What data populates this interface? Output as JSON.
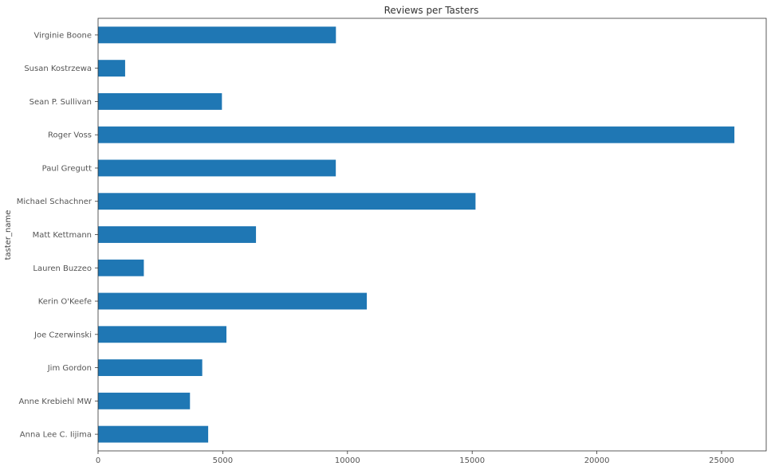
{
  "chart_data": {
    "type": "bar",
    "orientation": "horizontal",
    "title": "Reviews per Tasters",
    "xlabel": "",
    "ylabel": "taster_name",
    "categories": [
      "Virginie Boone",
      "Susan Kostrzewa",
      "Sean P. Sullivan",
      "Roger Voss",
      "Paul Gregutt",
      "Michael Schachner",
      "Matt Kettmann",
      "Lauren Buzzeo",
      "Kerin O'Keefe",
      "Joe Czerwinski",
      "Jim Gordon",
      "Anne Krebiehl MW",
      "Anna Lee C. Iijima"
    ],
    "values": [
      9537,
      1085,
      4966,
      25514,
      9532,
      15134,
      6332,
      1835,
      10776,
      5147,
      4177,
      3685,
      4415
    ],
    "xlim": [
      0,
      26790
    ],
    "xticks": [
      0,
      5000,
      10000,
      15000,
      20000,
      25000
    ],
    "xtick_labels": [
      "0",
      "5000",
      "10000",
      "15000",
      "20000",
      "25000"
    ],
    "grid": false,
    "bar_color": "#1f77b4"
  }
}
